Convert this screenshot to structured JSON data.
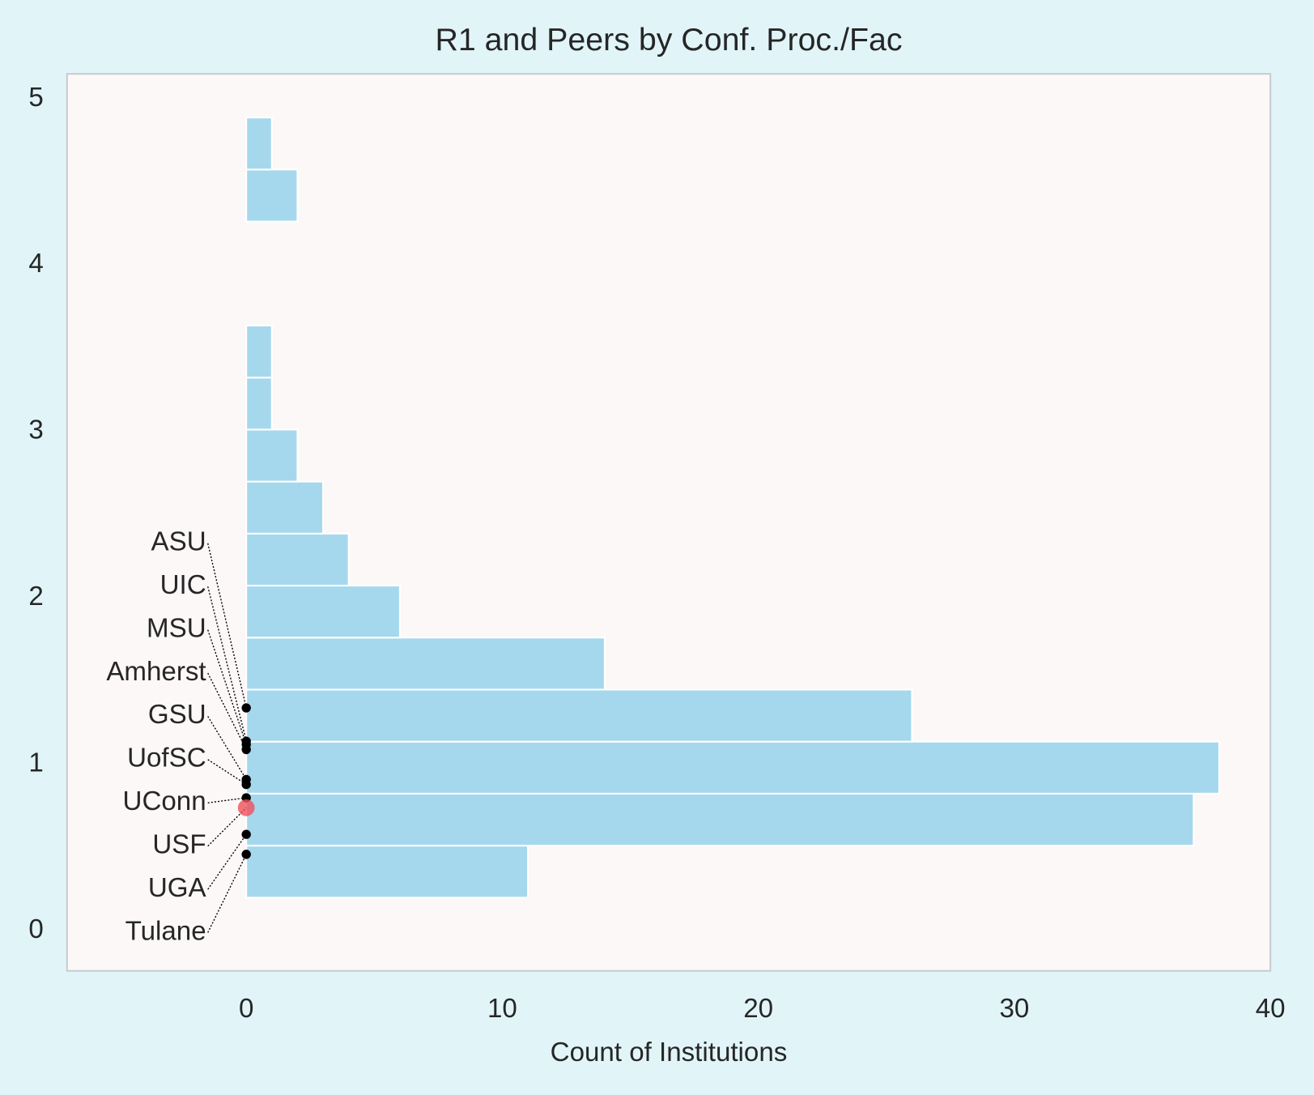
{
  "chart_data": {
    "type": "histogram",
    "orientation": "horizontal",
    "title": "R1 and Peers by Conf. Proc./Fac",
    "xlabel": "Count of Institutions",
    "bins": [
      0.2,
      0.5125,
      0.825,
      1.1375,
      1.45,
      1.7625,
      2.075,
      2.3875,
      2.7,
      3.0125,
      3.325,
      3.6375,
      3.95,
      4.2625,
      4.575,
      4.8875
    ],
    "values": [
      11,
      37,
      38,
      26,
      14,
      6,
      4,
      3,
      2,
      1,
      1,
      0,
      0,
      2,
      1
    ],
    "color": "#a6d8ed",
    "xlim": [
      -7,
      40
    ],
    "xticks": [
      0,
      10,
      20,
      30,
      40
    ],
    "ylim": [
      -0.24,
      5.15
    ],
    "yticks": [
      0,
      1,
      2,
      3,
      4,
      5
    ],
    "grid": false,
    "annotations": [
      {
        "label": "ASU",
        "x": 0,
        "y": 1.34,
        "color": "#000000"
      },
      {
        "label": "UIC",
        "x": 0,
        "y": 1.14,
        "color": "#000000"
      },
      {
        "label": "MSU",
        "x": 0,
        "y": 1.12,
        "color": "#000000"
      },
      {
        "label": "Amherst",
        "x": 0,
        "y": 1.09,
        "color": "#000000"
      },
      {
        "label": "GSU",
        "x": 0,
        "y": 0.91,
        "color": "#000000"
      },
      {
        "label": "UofSC",
        "x": 0,
        "y": 0.88,
        "color": "#000000"
      },
      {
        "label": "UConn",
        "x": 0,
        "y": 0.8,
        "color": "#000000"
      },
      {
        "label": "USF",
        "x": 0,
        "y": 0.74,
        "color": "#f0505a"
      },
      {
        "label": "UGA",
        "x": 0,
        "y": 0.58,
        "color": "#000000"
      },
      {
        "label": "Tulane",
        "x": 0,
        "y": 0.46,
        "color": "#000000"
      }
    ]
  }
}
